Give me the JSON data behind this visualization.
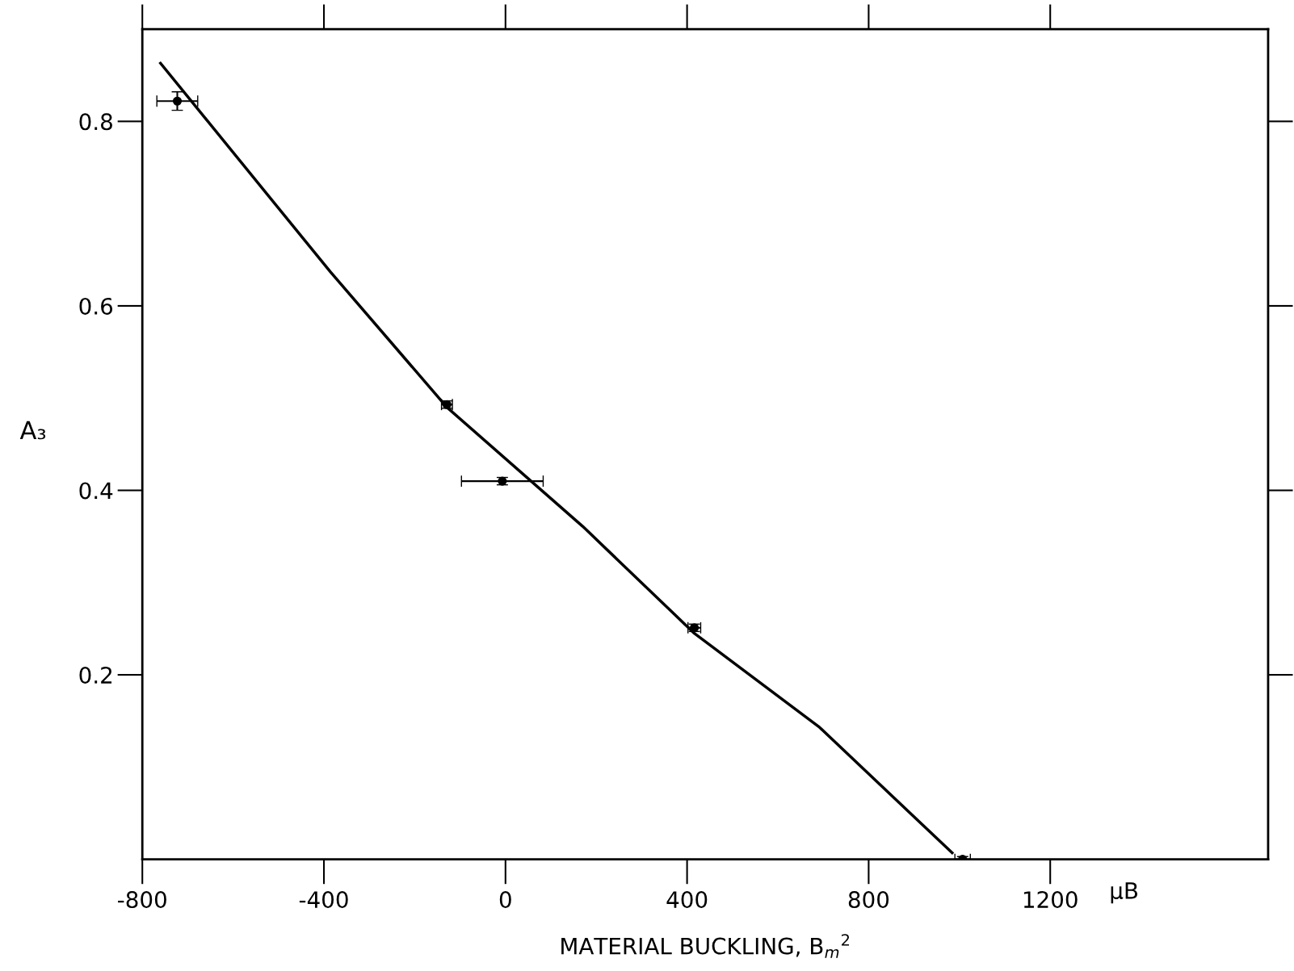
{
  "chart_data": {
    "type": "scatter",
    "xlabel": "MATERIAL BUCKLING, B$_{m}$$^{2}$",
    "ylabel": "A₃",
    "annotations": [
      "μB"
    ],
    "xlim": [
      -800,
      1680
    ],
    "ylim": [
      0,
      0.9
    ],
    "xticks": [
      -800,
      -400,
      0,
      400,
      800,
      1200
    ],
    "yticks": [
      0.2,
      0.4,
      0.6,
      0.8
    ],
    "grid": false,
    "legend": false,
    "series": [
      {
        "color": "#000000",
        "marker": "circle",
        "x": [
          -723,
          -129,
          -7,
          416,
          1007
        ],
        "values": [
          0.822,
          0.493,
          0.41,
          0.251,
          0.0
        ],
        "errors": [
          0.01,
          0.004,
          0.004,
          0.004,
          0.003
        ],
        "xerrors": [
          45,
          12,
          90,
          14,
          17
        ]
      },
      {
        "type": "line",
        "color": "#000000",
        "line_style": "solid",
        "marker": "none",
        "x": [
          -760,
          -386,
          -129,
          170,
          416,
          692,
          984
        ],
        "values": [
          0.863,
          0.637,
          0.49,
          0.361,
          0.245,
          0.143,
          0.007
        ]
      }
    ]
  }
}
